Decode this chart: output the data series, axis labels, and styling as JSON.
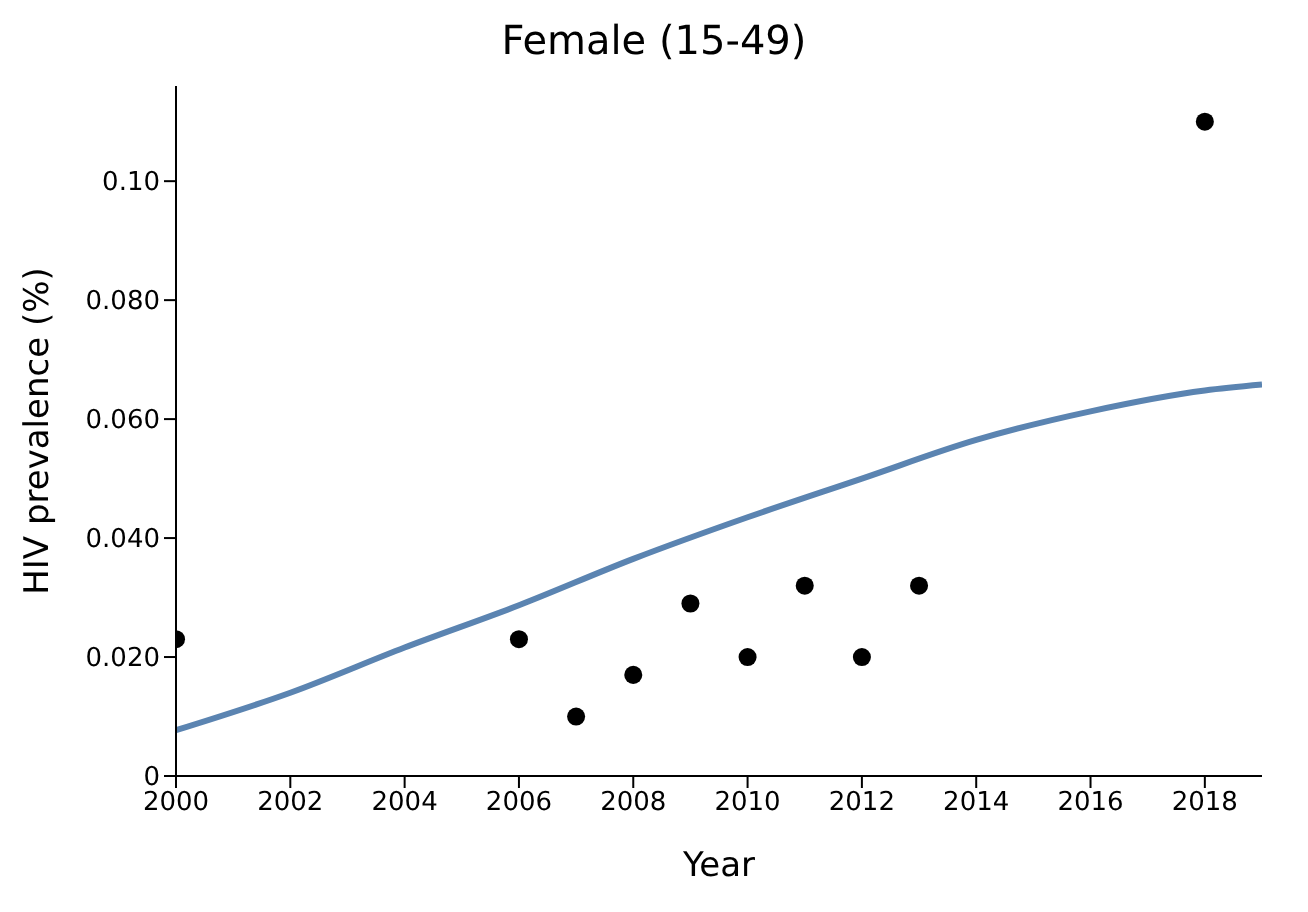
{
  "chart_data": {
    "type": "scatter",
    "title": "Female (15-49)",
    "xlabel": "Year",
    "ylabel": "HIV prevalence (%)",
    "xlim": [
      2000,
      2019
    ],
    "xticks": [
      2000,
      2002,
      2004,
      2006,
      2008,
      2010,
      2012,
      2014,
      2016,
      2018
    ],
    "ylim": [
      0,
      0.116
    ],
    "yticks": [
      {
        "value": 0,
        "label": "0"
      },
      {
        "value": 0.02,
        "label": "0.020"
      },
      {
        "value": 0.04,
        "label": "0.040"
      },
      {
        "value": 0.06,
        "label": "0.060"
      },
      {
        "value": 0.08,
        "label": "0.080"
      },
      {
        "value": 0.1,
        "label": "0.10"
      }
    ],
    "grid": false,
    "legend": false,
    "series": [
      {
        "color": "#000000",
        "marker": "circle",
        "x": [
          2000,
          2006,
          2007,
          2008,
          2009,
          2010,
          2011,
          2012,
          2013,
          2018
        ],
        "values": [
          0.023,
          0.023,
          0.01,
          0.017,
          0.029,
          0.02,
          0.032,
          0.02,
          0.032,
          0.11
        ]
      },
      {
        "type": "line",
        "color": "#5b84b1",
        "marker": "none",
        "line_style": "solid",
        "x": [
          2000,
          2002,
          2004,
          2006,
          2008,
          2010,
          2012,
          2014,
          2016,
          2018,
          2019
        ],
        "values": [
          0.0077,
          0.014,
          0.0216,
          0.0287,
          0.0365,
          0.0435,
          0.05,
          0.0565,
          0.0613,
          0.0648,
          0.0658
        ]
      }
    ]
  }
}
